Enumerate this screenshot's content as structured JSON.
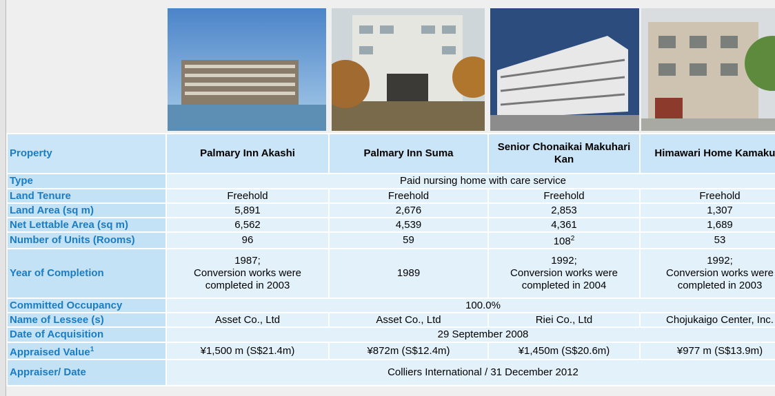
{
  "properties": [
    "Palmary Inn Akashi",
    "Palmary Inn Suma",
    "Senior Chonaikai Makuhari Kan",
    "Himawari Home Kamakura"
  ],
  "header_label": "Property",
  "rows": [
    {
      "label": "Type",
      "merged": "Paid nursing home with care service"
    },
    {
      "label": "Land Tenure",
      "values": [
        "Freehold",
        "Freehold",
        "Freehold",
        "Freehold"
      ]
    },
    {
      "label": "Land Area (sq m)",
      "values": [
        "5,891",
        "2,676",
        "2,853",
        "1,307"
      ]
    },
    {
      "label": "Net Lettable Area (sq m)",
      "values": [
        "6,562",
        "4,539",
        "4,361",
        "1,689"
      ]
    },
    {
      "label": "Number of Units (Rooms)",
      "values": [
        "96",
        "59",
        {
          "text": "108",
          "sup": "2"
        },
        "53"
      ]
    },
    {
      "label": "Year of Completion",
      "values": [
        {
          "lines": [
            "1987;",
            "Conversion works were",
            "completed in 2003"
          ]
        },
        "1989",
        {
          "lines": [
            "1992;",
            "Conversion works were",
            "completed in 2004"
          ]
        },
        {
          "lines": [
            "1992;",
            "Conversion works were",
            "completed in 2003"
          ]
        }
      ]
    },
    {
      "label": "Committed Occupancy",
      "merged": "100.0%"
    },
    {
      "label": "Name of Lessee (s)",
      "values": [
        "Asset Co., Ltd",
        "Asset Co., Ltd",
        "Riei Co., Ltd",
        "Chojukaigo Center, Inc."
      ]
    },
    {
      "label": "Date of Acquisition",
      "merged": "29 September 2008"
    },
    {
      "label": {
        "text": "Appraised Value",
        "sup": "1"
      },
      "values": [
        "¥1,500 m (S$21.4m)",
        "¥872m (S$12.4m)",
        "¥1,450m (S$20.6m)",
        "¥977 m (S$13.9m)"
      ]
    },
    {
      "label": "Appraiser/ Date",
      "merged": "Colliers International / 31 December 2012"
    }
  ]
}
